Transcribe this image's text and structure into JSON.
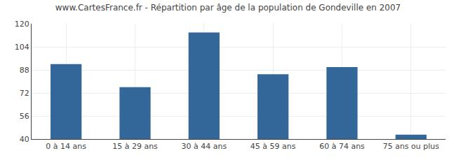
{
  "chart_data": {
    "type": "bar",
    "title": "www.CartesFrance.fr - Répartition par âge de la population de Gondeville en 2007",
    "categories": [
      "0 à 14 ans",
      "15 à 29 ans",
      "30 à 44 ans",
      "45 à 59 ans",
      "60 à 74 ans",
      "75 ans ou plus"
    ],
    "values": [
      92,
      76,
      114,
      85,
      90,
      43
    ],
    "color": "#336699",
    "ylim": [
      40,
      120
    ],
    "yticks": [
      40,
      56,
      72,
      88,
      104,
      120
    ],
    "grid": true
  }
}
